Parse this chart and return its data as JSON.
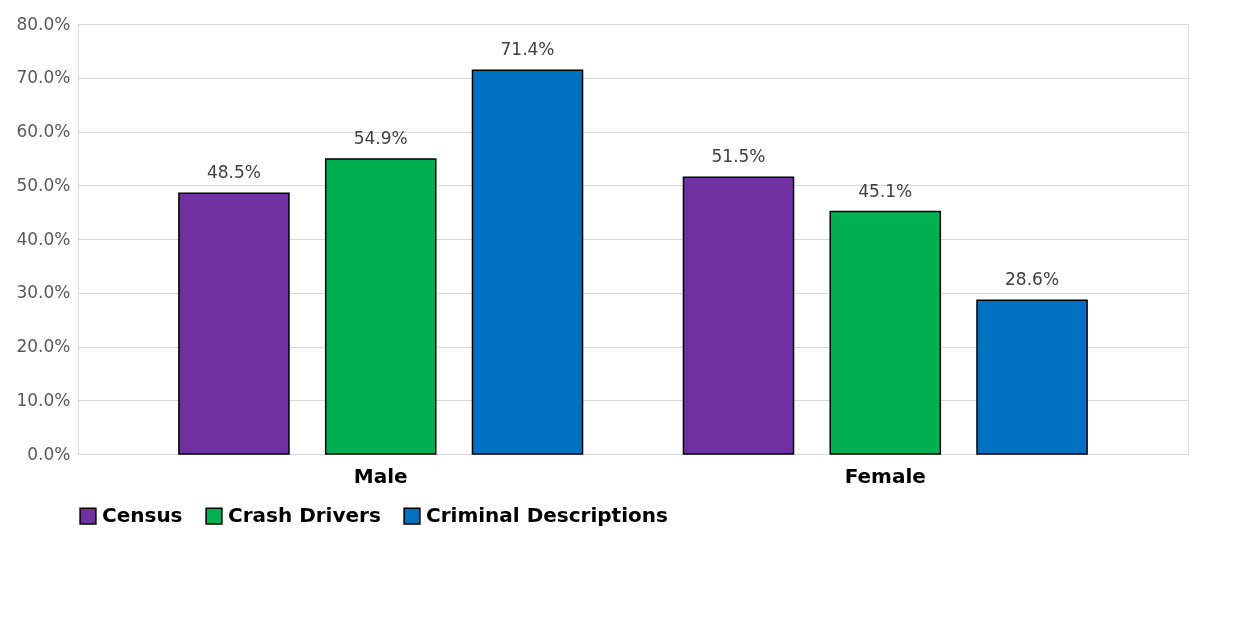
{
  "chart_data": {
    "type": "bar",
    "categories": [
      "Male",
      "Female"
    ],
    "series": [
      {
        "name": "Census",
        "color": "#7030a0",
        "values": [
          48.5,
          51.5
        ],
        "value_labels": [
          "48.5%",
          "51.5%"
        ]
      },
      {
        "name": "Crash Drivers",
        "color": "#00b050",
        "values": [
          54.9,
          45.1
        ],
        "value_labels": [
          "54.9%",
          "45.1%"
        ]
      },
      {
        "name": "Criminal Descriptions",
        "color": "#0070c0",
        "values": [
          71.4,
          28.6
        ],
        "value_labels": [
          "71.4%",
          "28.6%"
        ]
      }
    ],
    "ylim": [
      0,
      80
    ],
    "yticks": [
      {
        "value": 0,
        "label": "0.0%"
      },
      {
        "value": 10,
        "label": "10.0%"
      },
      {
        "value": 20,
        "label": "20.0%"
      },
      {
        "value": 30,
        "label": "30.0%"
      },
      {
        "value": 40,
        "label": "40.0%"
      },
      {
        "value": 50,
        "label": "50.0%"
      },
      {
        "value": 60,
        "label": "60.0%"
      },
      {
        "value": 70,
        "label": "70.0%"
      },
      {
        "value": 80,
        "label": "80.0%"
      }
    ],
    "grid": "y",
    "legend": "bottom"
  }
}
